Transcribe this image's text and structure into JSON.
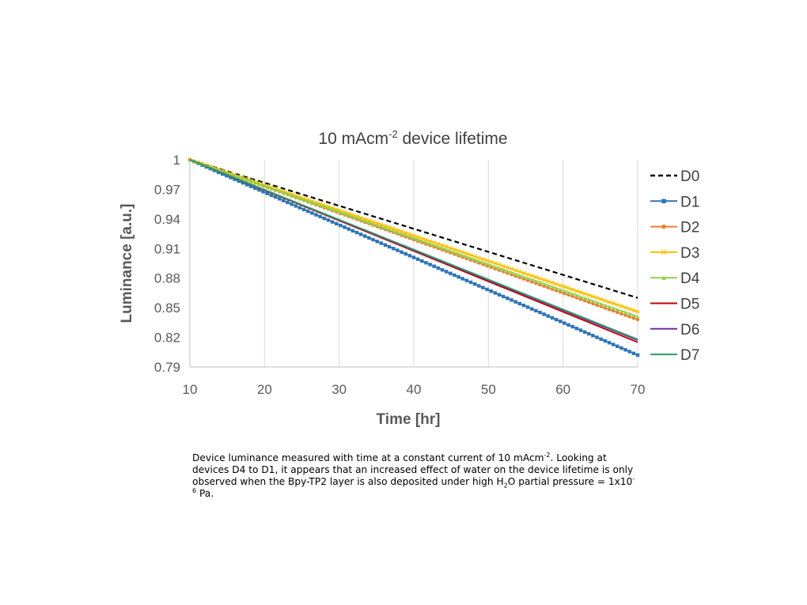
{
  "chart_data": {
    "type": "line",
    "title": {
      "main": "10 mAcm",
      "sup": "-2",
      "rest": " device lifetime"
    },
    "xlabel": "Time [hr]",
    "ylabel": "Luminance [a.u.]",
    "xlim": [
      10,
      70
    ],
    "ylim": [
      0.79,
      1.0
    ],
    "xticks": [
      "10",
      "20",
      "30",
      "40",
      "50",
      "60",
      "70"
    ],
    "yticks": [
      "1",
      "0.97",
      "0.94",
      "0.91",
      "0.88",
      "0.85",
      "0.82",
      "0.79"
    ],
    "grid": "vertical",
    "legend_position": "right",
    "series": [
      {
        "name": "D0",
        "color": "#000000",
        "style": "dashed",
        "marker": "none",
        "x": [
          10,
          70
        ],
        "y": [
          1.0,
          0.86
        ]
      },
      {
        "name": "D1",
        "color": "#2E75B6",
        "style": "solid",
        "marker": "square",
        "x": [
          10,
          70
        ],
        "y": [
          1.0,
          0.802
        ]
      },
      {
        "name": "D2",
        "color": "#ED7D31",
        "style": "solid",
        "marker": "circle",
        "x": [
          10,
          70
        ],
        "y": [
          1.0,
          0.838
        ]
      },
      {
        "name": "D3",
        "color": "#FFC000",
        "style": "solid",
        "marker": "x",
        "x": [
          10,
          70
        ],
        "y": [
          1.0,
          0.846
        ]
      },
      {
        "name": "D4",
        "color": "#92D050",
        "style": "solid",
        "marker": "triangle",
        "x": [
          10,
          70
        ],
        "y": [
          1.0,
          0.841
        ]
      },
      {
        "name": "D5",
        "color": "#C00000",
        "style": "solid",
        "marker": "none",
        "x": [
          10,
          70
        ],
        "y": [
          1.0,
          0.815
        ]
      },
      {
        "name": "D6",
        "color": "#7030A0",
        "style": "solid",
        "marker": "none",
        "x": [
          10,
          70
        ],
        "y": [
          1.0,
          0.817
        ]
      },
      {
        "name": "D7",
        "color": "#2E9B6B",
        "style": "solid",
        "marker": "none",
        "x": [
          10,
          70
        ],
        "y": [
          1.0,
          0.818
        ]
      }
    ]
  },
  "caption": {
    "t1": "Device luminance measured with time at a constant current of 10 mAcm",
    "s1": "-2",
    "t2": ". Looking at devices D4 to D1, it appears that an increased effect of water on the device lifetime is only observed when the Bpy-TP2 layer is also deposited under high H",
    "b1": "2",
    "t3": "O partial pressure = 1x10",
    "s2": "-6",
    "t4": " Pa."
  }
}
